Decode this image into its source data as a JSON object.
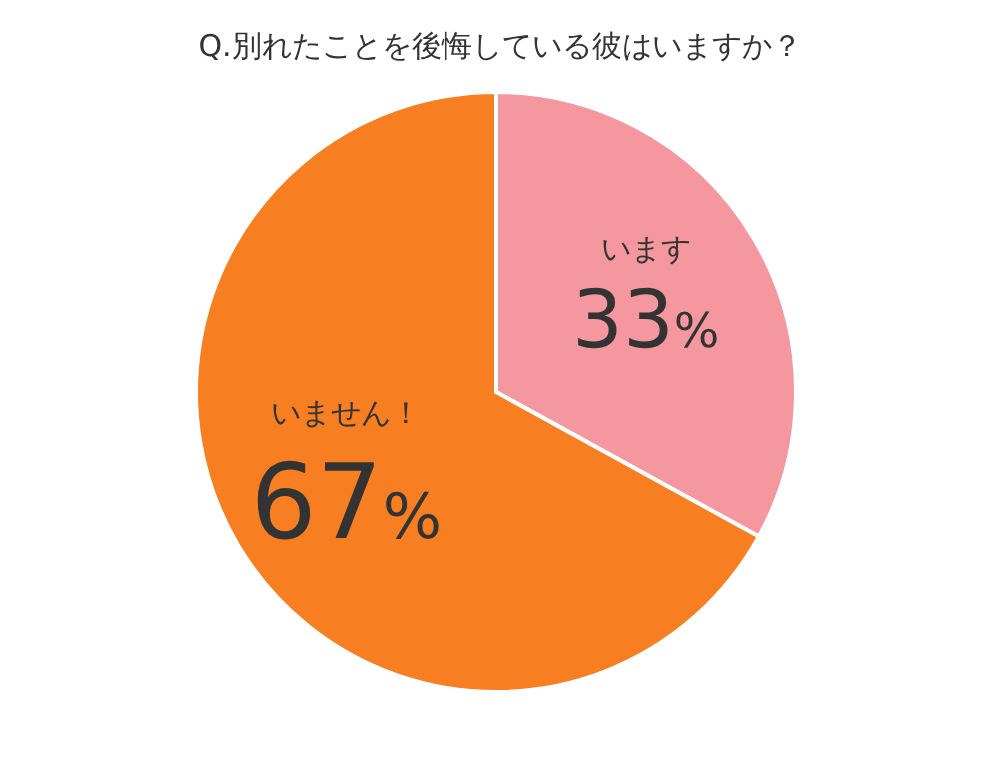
{
  "chart_data": {
    "type": "pie",
    "title": "Q.別れたことを後悔している彼はいますか？",
    "categories": [
      "います",
      "いません！"
    ],
    "values": [
      33,
      67
    ],
    "colors": [
      "#f4979f",
      "#f77f22"
    ],
    "value_labels": [
      "33%",
      "67%"
    ]
  }
}
